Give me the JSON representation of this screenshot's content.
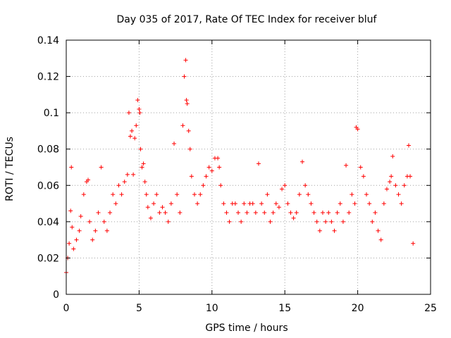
{
  "chart_data": {
    "type": "scatter",
    "title": "Day 035 of 2017, Rate Of TEC Index for receiver bluf",
    "xlabel": "GPS time / hours",
    "ylabel": "ROTI / TECUs",
    "xlim": [
      0,
      25
    ],
    "ylim": [
      0,
      0.14
    ],
    "x_ticks": [
      0,
      5,
      10,
      15,
      20,
      25
    ],
    "x_tick_labels": [
      "0",
      "5",
      "10",
      "15",
      "20",
      "25"
    ],
    "y_ticks": [
      0,
      0.02,
      0.04,
      0.06,
      0.08,
      0.1,
      0.12,
      0.14
    ],
    "y_tick_labels": [
      "0",
      "0.02",
      "0.04",
      "0.06",
      "0.08",
      "0.1",
      "0.12",
      "0.14"
    ],
    "grid": true,
    "marker": "+",
    "color": "#ff0000",
    "series": [
      {
        "name": "ROTI",
        "x": [
          0.0,
          0.1,
          0.2,
          0.3,
          0.35,
          0.4,
          0.5,
          0.7,
          0.9,
          1.0,
          1.2,
          1.4,
          1.5,
          1.6,
          1.8,
          2.0,
          2.2,
          2.4,
          2.6,
          2.8,
          3.0,
          3.2,
          3.4,
          3.6,
          3.8,
          4.0,
          4.2,
          4.3,
          4.4,
          4.5,
          4.6,
          4.7,
          4.8,
          4.9,
          5.0,
          5.05,
          5.1,
          5.2,
          5.3,
          5.4,
          5.5,
          5.6,
          5.8,
          6.0,
          6.2,
          6.4,
          6.6,
          6.8,
          7.0,
          7.2,
          7.4,
          7.6,
          7.8,
          8.0,
          8.1,
          8.2,
          8.25,
          8.3,
          8.4,
          8.5,
          8.6,
          8.8,
          9.0,
          9.2,
          9.4,
          9.6,
          9.8,
          10.0,
          10.2,
          10.4,
          10.5,
          10.6,
          10.8,
          11.0,
          11.2,
          11.4,
          11.6,
          11.8,
          12.0,
          12.2,
          12.4,
          12.6,
          12.8,
          13.0,
          13.2,
          13.4,
          13.6,
          13.8,
          14.0,
          14.2,
          14.4,
          14.6,
          14.8,
          15.0,
          15.2,
          15.4,
          15.6,
          15.8,
          16.0,
          16.2,
          16.4,
          16.6,
          16.8,
          17.0,
          17.2,
          17.4,
          17.6,
          17.8,
          18.0,
          18.2,
          18.4,
          18.6,
          18.8,
          19.0,
          19.2,
          19.4,
          19.6,
          19.8,
          19.9,
          20.0,
          20.2,
          20.4,
          20.6,
          20.8,
          21.0,
          21.2,
          21.4,
          21.6,
          21.8,
          22.0,
          22.2,
          22.3,
          22.4,
          22.6,
          22.8,
          23.0,
          23.2,
          23.4,
          23.5,
          23.6,
          23.8
        ],
        "y": [
          0.012,
          0.02,
          0.028,
          0.046,
          0.07,
          0.037,
          0.025,
          0.03,
          0.035,
          0.043,
          0.055,
          0.062,
          0.063,
          0.04,
          0.03,
          0.035,
          0.045,
          0.07,
          0.04,
          0.035,
          0.045,
          0.055,
          0.05,
          0.06,
          0.055,
          0.062,
          0.066,
          0.1,
          0.087,
          0.09,
          0.066,
          0.086,
          0.093,
          0.107,
          0.102,
          0.1,
          0.08,
          0.07,
          0.072,
          0.062,
          0.055,
          0.048,
          0.042,
          0.05,
          0.055,
          0.045,
          0.048,
          0.045,
          0.04,
          0.05,
          0.083,
          0.055,
          0.045,
          0.093,
          0.12,
          0.129,
          0.107,
          0.105,
          0.09,
          0.08,
          0.065,
          0.055,
          0.05,
          0.055,
          0.06,
          0.065,
          0.07,
          0.068,
          0.075,
          0.075,
          0.07,
          0.06,
          0.05,
          0.045,
          0.04,
          0.05,
          0.05,
          0.045,
          0.04,
          0.05,
          0.045,
          0.05,
          0.05,
          0.045,
          0.072,
          0.05,
          0.045,
          0.055,
          0.04,
          0.045,
          0.05,
          0.048,
          0.058,
          0.06,
          0.05,
          0.045,
          0.042,
          0.045,
          0.055,
          0.073,
          0.06,
          0.055,
          0.05,
          0.045,
          0.04,
          0.035,
          0.045,
          0.04,
          0.045,
          0.04,
          0.035,
          0.045,
          0.05,
          0.04,
          0.071,
          0.045,
          0.055,
          0.05,
          0.092,
          0.091,
          0.07,
          0.065,
          0.055,
          0.05,
          0.04,
          0.045,
          0.035,
          0.03,
          0.05,
          0.058,
          0.062,
          0.065,
          0.076,
          0.06,
          0.055,
          0.05,
          0.06,
          0.065,
          0.082,
          0.065,
          0.028
        ]
      }
    ]
  }
}
